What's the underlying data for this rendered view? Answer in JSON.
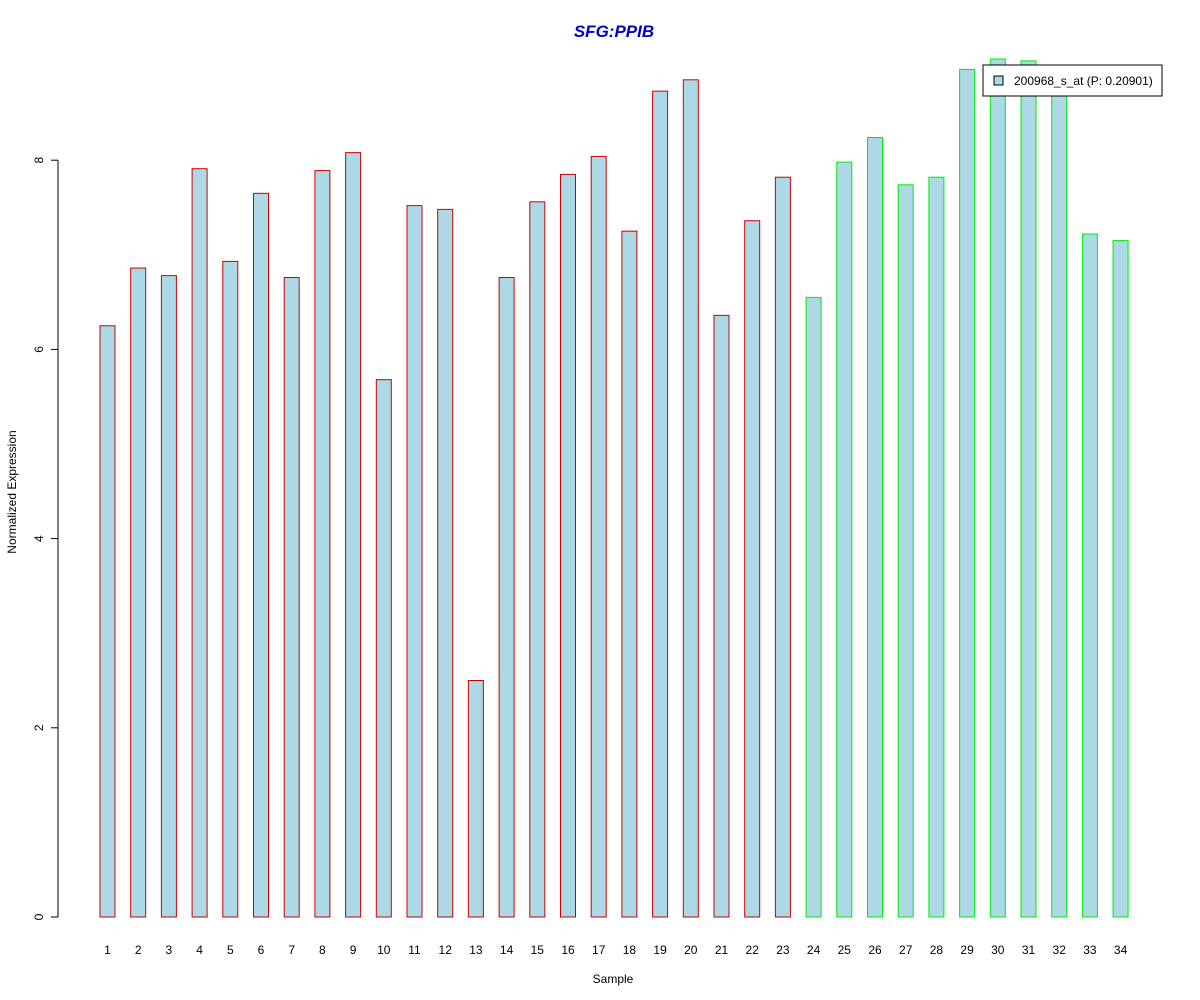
{
  "chart_data": {
    "type": "bar",
    "title": "SFG:PPIB",
    "xlabel": "Sample",
    "ylabel": "Normalized Expression",
    "categories": [
      "1",
      "2",
      "3",
      "4",
      "5",
      "6",
      "7",
      "8",
      "9",
      "10",
      "11",
      "12",
      "13",
      "14",
      "15",
      "16",
      "17",
      "18",
      "19",
      "20",
      "21",
      "22",
      "23",
      "24",
      "25",
      "26",
      "27",
      "28",
      "29",
      "30",
      "31",
      "32",
      "33",
      "34"
    ],
    "series": [
      {
        "name": "200968_s_at (P: 0.20901)",
        "values": [
          6.25,
          6.86,
          6.78,
          7.91,
          6.93,
          7.65,
          6.76,
          7.89,
          8.08,
          5.68,
          7.52,
          7.48,
          2.5,
          6.76,
          7.56,
          7.85,
          8.04,
          7.25,
          8.73,
          8.85,
          6.36,
          7.36,
          7.82,
          6.55,
          7.98,
          8.24,
          7.74,
          7.82,
          8.96,
          9.07,
          9.05,
          8.81,
          7.22,
          7.15
        ]
      }
    ],
    "yticks": [
      "0",
      "2",
      "4",
      "6",
      "8"
    ],
    "ylim": [
      0,
      9.2
    ],
    "grid": false,
    "legend_position": "top-right",
    "colors": {
      "bar_fill": "#add8e6",
      "group1_border": "#cc0000",
      "group2_border": "#00ee00",
      "title": "#0000cc",
      "axis": "#000000"
    },
    "groups": [
      {
        "samples": [
          1,
          23
        ],
        "border": "red"
      },
      {
        "samples": [
          24,
          34
        ],
        "border": "green"
      }
    ]
  }
}
